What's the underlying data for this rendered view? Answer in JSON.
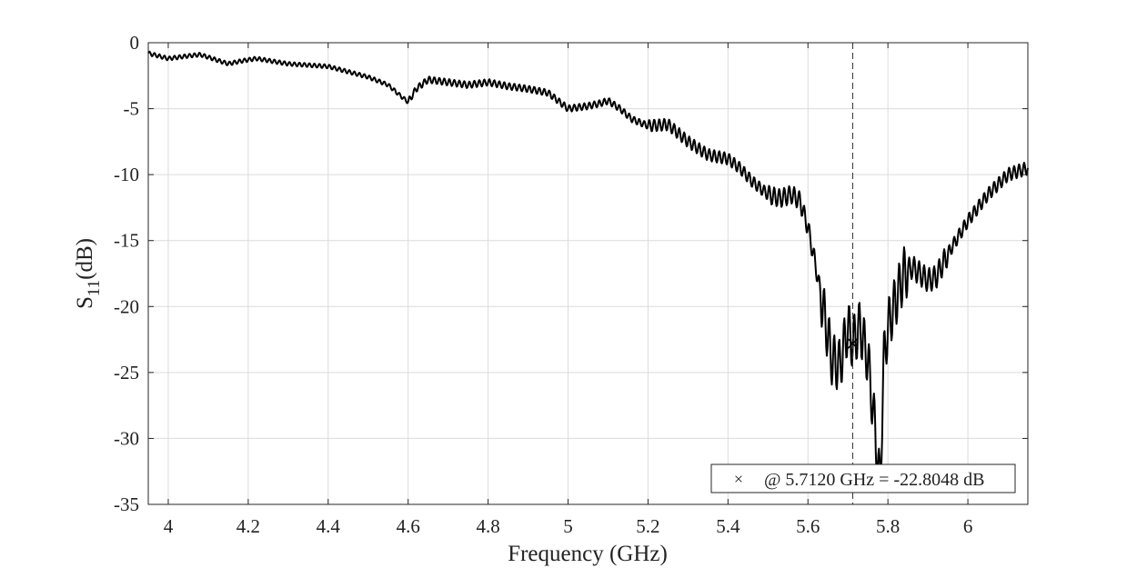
{
  "chart_data": {
    "type": "line",
    "xlabel": "Frequency (GHz)",
    "ylabel_main": "S",
    "ylabel_sub": "11",
    "ylabel_unit": "(dB)",
    "xlim": [
      3.95,
      6.15
    ],
    "ylim": [
      -35,
      0
    ],
    "xticks": [
      4,
      4.2,
      4.4,
      4.6,
      4.8,
      5,
      5.2,
      5.4,
      5.6,
      5.8,
      6
    ],
    "xtick_labels": [
      "4",
      "4.2",
      "4.4",
      "4.6",
      "4.8",
      "5",
      "5.2",
      "5.4",
      "5.6",
      "5.8",
      "6"
    ],
    "yticks": [
      0,
      -5,
      -10,
      -15,
      -20,
      -25,
      -30,
      -35
    ],
    "ytick_labels": [
      "0",
      "-5",
      "-10",
      "-15",
      "-20",
      "-25",
      "-30",
      "-35"
    ],
    "grid": true,
    "series": [
      {
        "color": "#000000",
        "x": [
          3.95,
          4.0,
          4.05,
          4.08,
          4.12,
          4.15,
          4.18,
          4.22,
          4.26,
          4.3,
          4.35,
          4.4,
          4.45,
          4.5,
          4.55,
          4.58,
          4.6,
          4.62,
          4.65,
          4.7,
          4.75,
          4.8,
          4.85,
          4.9,
          4.95,
          5.0,
          5.05,
          5.08,
          5.1,
          5.13,
          5.16,
          5.2,
          5.25,
          5.3,
          5.35,
          5.4,
          5.43,
          5.46,
          5.5,
          5.53,
          5.56,
          5.58,
          5.6,
          5.62,
          5.64,
          5.66,
          5.68,
          5.7,
          5.712,
          5.73,
          5.75,
          5.765,
          5.78,
          5.79,
          5.8,
          5.82,
          5.84,
          5.86,
          5.88,
          5.9,
          5.92,
          5.95,
          6.0,
          6.05,
          6.1,
          6.15
        ],
        "y": [
          -0.8,
          -1.2,
          -1.0,
          -0.9,
          -1.3,
          -1.6,
          -1.4,
          -1.2,
          -1.4,
          -1.6,
          -1.7,
          -1.8,
          -2.2,
          -2.6,
          -3.2,
          -4.0,
          -4.5,
          -3.5,
          -2.8,
          -3.0,
          -3.2,
          -3.0,
          -3.3,
          -3.5,
          -3.8,
          -5.0,
          -4.8,
          -4.6,
          -4.4,
          -5.0,
          -5.8,
          -6.3,
          -6.2,
          -7.5,
          -8.5,
          -8.8,
          -9.5,
          -10.5,
          -11.5,
          -11.8,
          -11.5,
          -12.0,
          -14.0,
          -17.0,
          -20.5,
          -24.0,
          -24.5,
          -21.5,
          -22.8,
          -21.5,
          -24.0,
          -28.5,
          -33.5,
          -24.0,
          -21.5,
          -19.5,
          -17.5,
          -17.0,
          -17.5,
          -18.0,
          -17.8,
          -16.0,
          -13.5,
          -11.5,
          -10.0,
          -9.5
        ]
      }
    ],
    "marker": {
      "x": 5.712,
      "y": -22.8048
    },
    "datatip": {
      "symbol": "×",
      "text": "@ 5.7120 GHz = -22.8048 dB"
    }
  }
}
